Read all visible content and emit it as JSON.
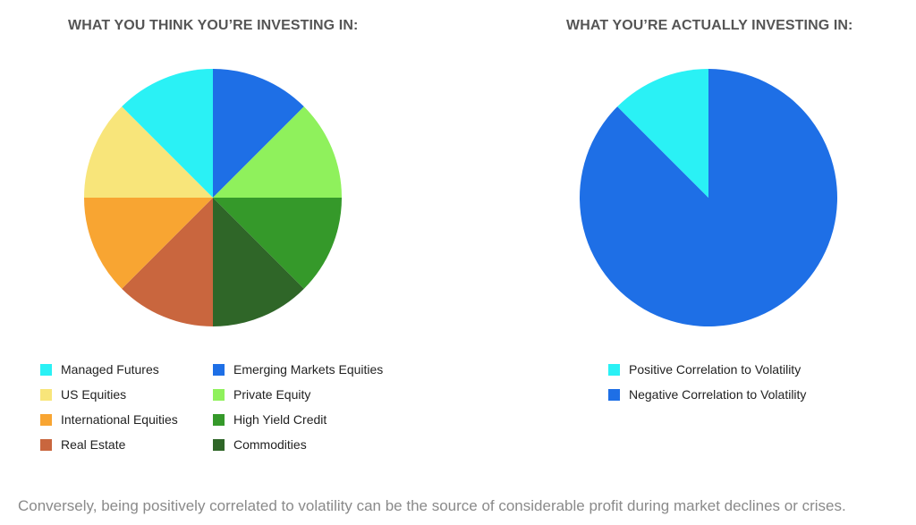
{
  "chart_data": [
    {
      "type": "pie",
      "title": "WHAT YOU THINK YOU’RE INVESTING IN:",
      "series": [
        {
          "values": [
            12.5,
            12.5,
            12.5,
            12.5,
            12.5,
            12.5,
            12.5,
            12.5
          ]
        }
      ],
      "slices": [
        {
          "label": "Emerging Markets Equities",
          "value": 12.5,
          "color": "#1e6fe6"
        },
        {
          "label": "Private Equity",
          "value": 12.5,
          "color": "#8ff15c"
        },
        {
          "label": "High Yield Credit",
          "value": 12.5,
          "color": "#35992a"
        },
        {
          "label": "Commodities",
          "value": 12.5,
          "color": "#2f6628"
        },
        {
          "label": "Real Estate",
          "value": 12.5,
          "color": "#c9663e"
        },
        {
          "label": "International Equities",
          "value": 12.5,
          "color": "#f8a532"
        },
        {
          "label": "US Equities",
          "value": 12.5,
          "color": "#f8e57a"
        },
        {
          "label": "Managed Futures",
          "value": 12.5,
          "color": "#2af1f5"
        }
      ],
      "start_angle_deg": 0,
      "direction": "clockwise",
      "legend": {
        "placement": "bottom",
        "columns": 2,
        "items": [
          {
            "label": "Managed Futures",
            "color": "#2af1f5"
          },
          {
            "label": "US Equities",
            "color": "#f8e57a"
          },
          {
            "label": "International Equities",
            "color": "#f8a532"
          },
          {
            "label": "Real Estate",
            "color": "#c9663e"
          },
          {
            "label": "Emerging Markets Equities",
            "color": "#1e6fe6"
          },
          {
            "label": "Private Equity",
            "color": "#8ff15c"
          },
          {
            "label": "High Yield Credit",
            "color": "#35992a"
          },
          {
            "label": "Commodities",
            "color": "#2f6628"
          }
        ]
      }
    },
    {
      "type": "pie",
      "title": "WHAT YOU’RE ACTUALLY INVESTING IN:",
      "slices": [
        {
          "label": "Negative Correlation to Volatility",
          "value": 87.5,
          "color": "#1e6fe6"
        },
        {
          "label": "Positive Correlation to Volatility",
          "value": 12.5,
          "color": "#2af1f5"
        }
      ],
      "start_angle_deg": 0,
      "direction": "clockwise",
      "legend": {
        "placement": "bottom",
        "columns": 1,
        "items": [
          {
            "label": "Positive Correlation to Volatility",
            "color": "#2af1f5"
          },
          {
            "label": "Negative Correlation to Volatility",
            "color": "#1e6fe6"
          }
        ]
      }
    }
  ],
  "caption": "Conversely, being positively correlated to volatility can be the source of considerable profit during market declines or crises."
}
